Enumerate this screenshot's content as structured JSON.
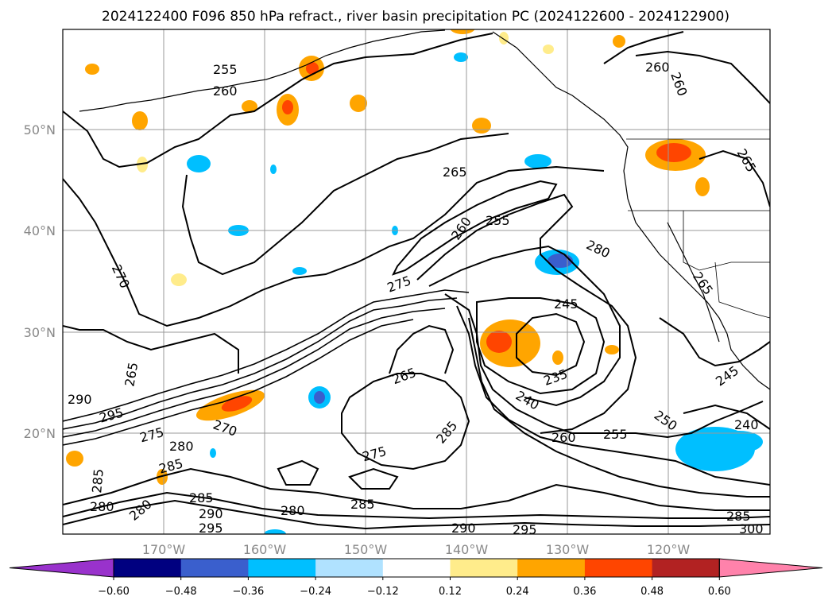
{
  "title": "2024122400 F096 850 hPa refract., river basin precipitation PC (2024122600 - 2024122900)",
  "map": {
    "lat_labels": [
      "50°N",
      "40°N",
      "30°N",
      "20°N"
    ],
    "lon_labels": [
      "170°W",
      "160°W",
      "150°W",
      "140°W",
      "130°W",
      "120°W"
    ],
    "contour_labels": [
      "255",
      "260",
      "260",
      "260",
      "265",
      "265",
      "270",
      "260",
      "255",
      "280",
      "275",
      "245",
      "265",
      "235",
      "240",
      "290",
      "295",
      "275",
      "280",
      "285",
      "285",
      "280",
      "280",
      "285",
      "290",
      "295",
      "280",
      "270",
      "275",
      "285",
      "285",
      "290",
      "295",
      "260",
      "255",
      "250",
      "240",
      "245",
      "265",
      "265",
      "285",
      "300"
    ]
  },
  "colorbar": {
    "ticks": [
      "−0.60",
      "−0.48",
      "−0.36",
      "−0.24",
      "−0.12",
      "0.12",
      "0.24",
      "0.36",
      "0.48",
      "0.60"
    ],
    "colors": [
      "#9932cc",
      "#000080",
      "#3a5fcd",
      "#00bfff",
      "#b0e2ff",
      "#ffffff",
      "#ffec8b",
      "#ffa500",
      "#ff4500",
      "#b22222",
      "#ff82ab"
    ]
  }
}
